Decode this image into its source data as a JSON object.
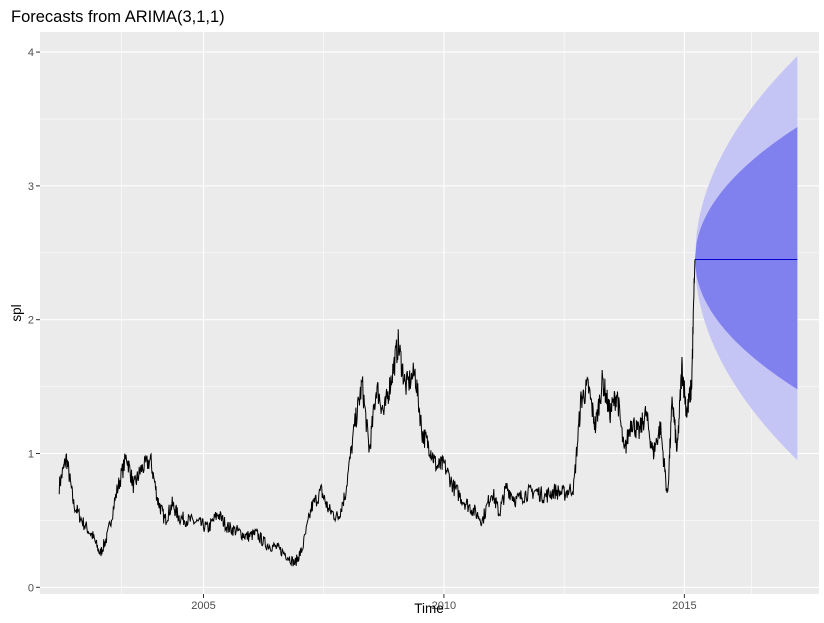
{
  "chart_data": {
    "type": "line",
    "title": "Forecasts from ARIMA(3,1,1)",
    "xlabel": "Time",
    "ylabel": "spl",
    "xlim": [
      2001.6,
      2017.8
    ],
    "ylim": [
      -0.05,
      4.15
    ],
    "x_ticks": [
      2005,
      2010,
      2015
    ],
    "y_ticks": [
      0,
      1,
      2,
      3,
      4
    ],
    "grid": true,
    "background": "#EBEBEB",
    "colors": {
      "history": "#000000",
      "forecast_line": "#0000CC",
      "band_80": "#8080EE",
      "band_95": "#C4C4F5",
      "grid": "#FFFFFF",
      "tick": "#4D4D4D"
    },
    "history": {
      "x": [
        2002.0,
        2002.15,
        2002.3,
        2002.5,
        2002.7,
        2002.85,
        2003.0,
        2003.2,
        2003.4,
        2003.55,
        2003.7,
        2003.9,
        2004.05,
        2004.2,
        2004.35,
        2004.5,
        2004.7,
        2004.9,
        2005.1,
        2005.3,
        2005.5,
        2005.7,
        2005.9,
        2006.1,
        2006.3,
        2006.5,
        2006.7,
        2006.9,
        2007.05,
        2007.25,
        2007.45,
        2007.6,
        2007.8,
        2007.95,
        2008.15,
        2008.3,
        2008.45,
        2008.6,
        2008.75,
        2008.9,
        2009.05,
        2009.2,
        2009.4,
        2009.55,
        2009.7,
        2009.85,
        2010.0,
        2010.2,
        2010.4,
        2010.6,
        2010.8,
        2011.0,
        2011.15,
        2011.3,
        2011.5,
        2011.7,
        2011.9,
        2012.1,
        2012.3,
        2012.5,
        2012.7,
        2012.85,
        2013.0,
        2013.15,
        2013.3,
        2013.45,
        2013.6,
        2013.75,
        2013.9,
        2014.05,
        2014.2,
        2014.35,
        2014.5,
        2014.65,
        2014.75,
        2014.85,
        2014.95,
        2015.05,
        2015.15,
        2015.22
      ],
      "y": [
        0.76,
        0.97,
        0.62,
        0.48,
        0.38,
        0.25,
        0.38,
        0.72,
        0.98,
        0.75,
        0.88,
        0.95,
        0.65,
        0.5,
        0.62,
        0.52,
        0.5,
        0.48,
        0.44,
        0.55,
        0.45,
        0.42,
        0.38,
        0.4,
        0.32,
        0.3,
        0.25,
        0.18,
        0.28,
        0.6,
        0.72,
        0.58,
        0.52,
        0.7,
        1.22,
        1.52,
        1.02,
        1.5,
        1.3,
        1.55,
        1.82,
        1.5,
        1.6,
        1.15,
        1.05,
        0.9,
        0.92,
        0.75,
        0.65,
        0.58,
        0.5,
        0.72,
        0.55,
        0.75,
        0.65,
        0.7,
        0.72,
        0.68,
        0.72,
        0.7,
        0.75,
        1.4,
        1.5,
        1.2,
        1.55,
        1.3,
        1.45,
        1.0,
        1.25,
        1.15,
        1.3,
        1.0,
        1.2,
        0.68,
        1.4,
        1.0,
        1.65,
        1.3,
        1.5,
        2.45
      ]
    },
    "forecast": {
      "start": 2015.22,
      "end": 2017.35,
      "mean": 2.45,
      "lo80_end": 1.48,
      "hi80_end": 3.44,
      "lo95_end": 0.95,
      "hi95_end": 3.97
    }
  }
}
